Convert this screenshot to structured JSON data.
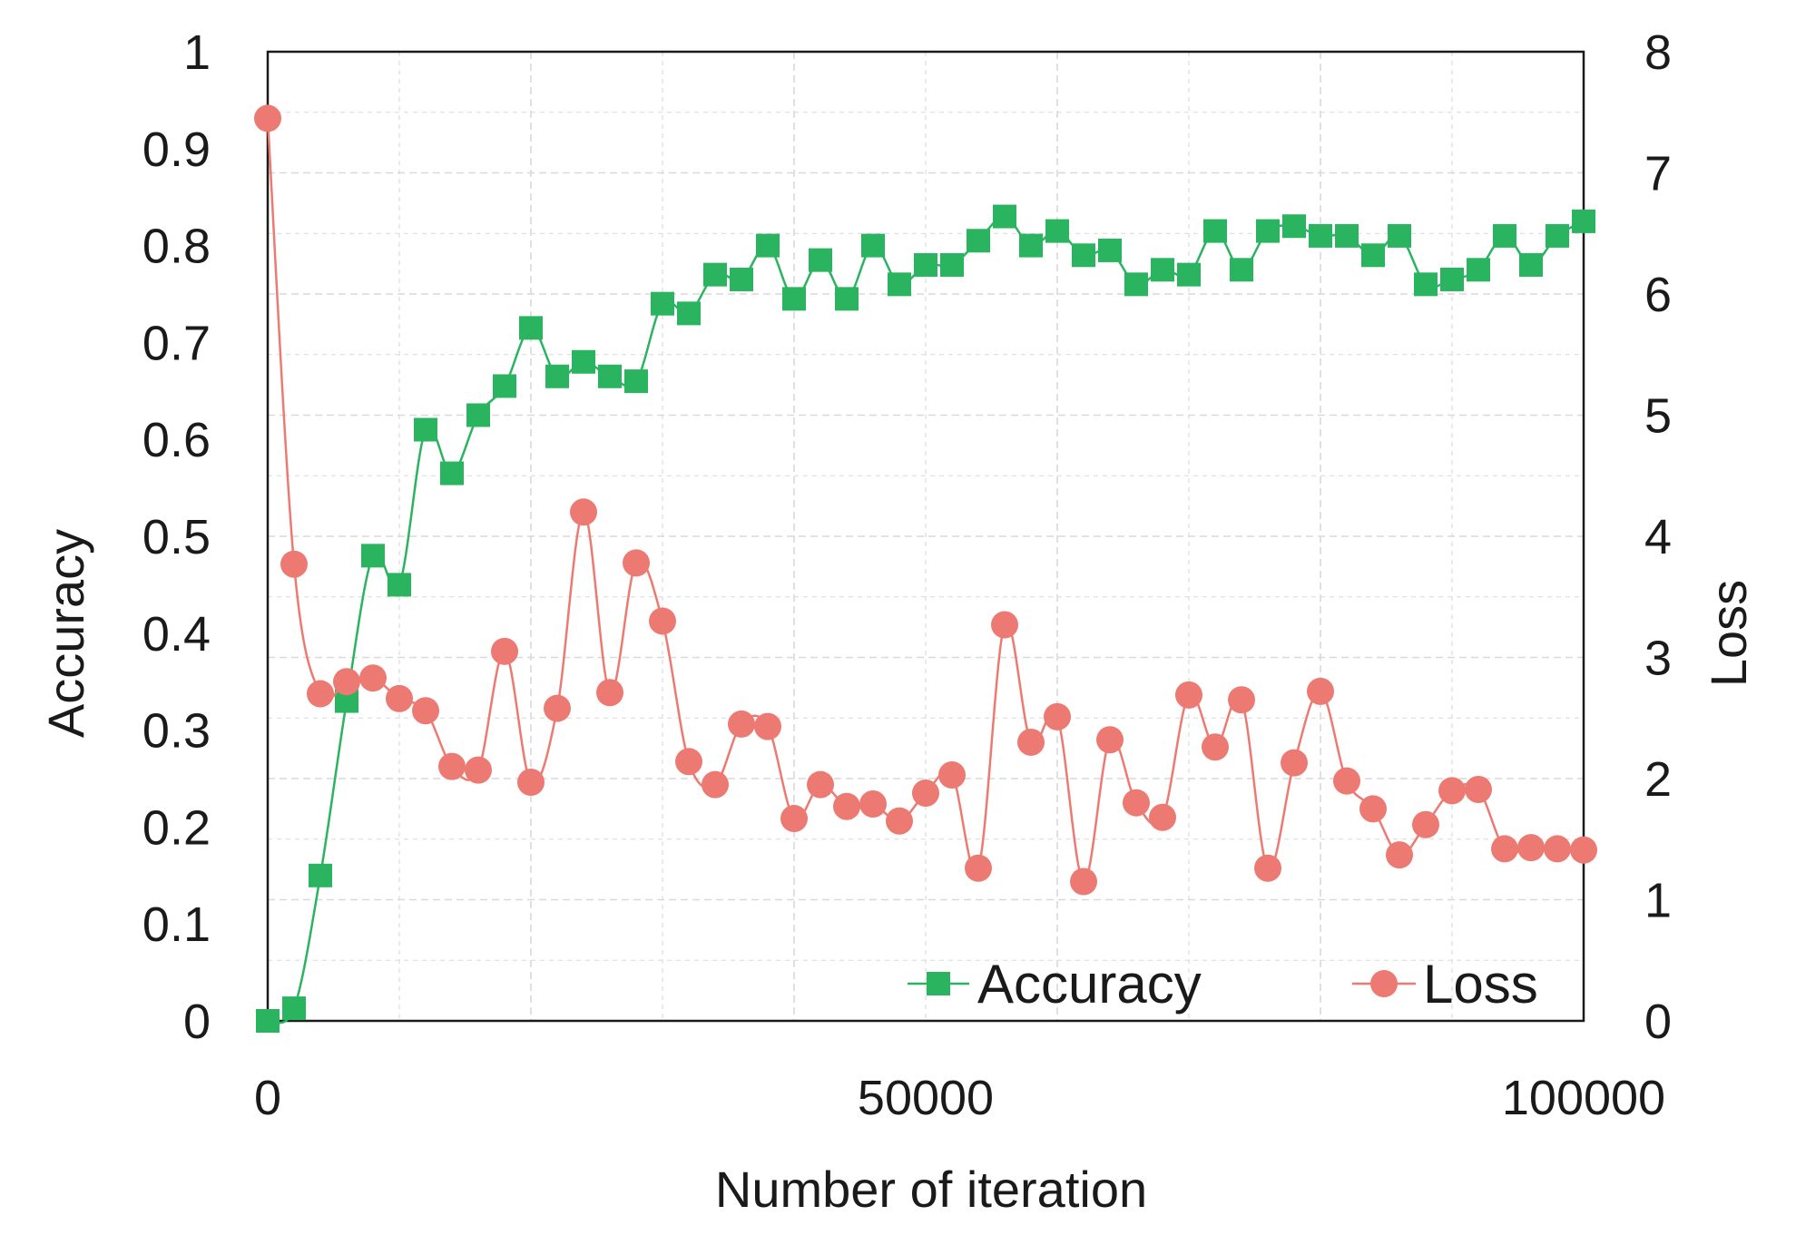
{
  "chart_data": {
    "type": "line",
    "title": "",
    "xlabel": "Number of iteration",
    "ylabel_left": "Accuracy",
    "ylabel_right": "Loss",
    "xlim": [
      0,
      100000
    ],
    "ylim_left": [
      0,
      1
    ],
    "ylim_right": [
      0,
      8
    ],
    "x_ticks": [
      0,
      50000,
      100000
    ],
    "x_tick_labels": [
      "0",
      "50000",
      "100000"
    ],
    "y_left_ticks": [
      0,
      0.1,
      0.2,
      0.3,
      0.4,
      0.5,
      0.6,
      0.7,
      0.8,
      0.9,
      1
    ],
    "y_left_tick_labels": [
      "0",
      "0.1",
      "0.2",
      "0.3",
      "0.4",
      "0.5",
      "0.6",
      "0.7",
      "0.8",
      "0.9",
      "1"
    ],
    "y_right_ticks": [
      0,
      1,
      2,
      3,
      4,
      5,
      6,
      7,
      8
    ],
    "y_right_tick_labels": [
      "0",
      "1",
      "2",
      "3",
      "4",
      "5",
      "6",
      "7",
      "8"
    ],
    "grid": true,
    "legend_position": "bottom-right",
    "x": [
      0,
      2000,
      4000,
      6000,
      8000,
      10000,
      12000,
      14000,
      16000,
      18000,
      20000,
      22000,
      24000,
      26000,
      28000,
      30000,
      32000,
      34000,
      36000,
      38000,
      40000,
      42000,
      44000,
      46000,
      48000,
      50000,
      52000,
      54000,
      56000,
      58000,
      60000,
      62000,
      64000,
      66000,
      68000,
      70000,
      72000,
      74000,
      76000,
      78000,
      80000,
      82000,
      84000,
      86000,
      88000,
      90000,
      92000,
      94000,
      96000,
      98000,
      100000
    ],
    "series": [
      {
        "name": "Accuracy",
        "axis": "left",
        "marker": "square",
        "color": "#2bb45f",
        "values": [
          0.0,
          0.013,
          0.15,
          0.33,
          0.48,
          0.45,
          0.61,
          0.565,
          0.625,
          0.655,
          0.715,
          0.665,
          0.68,
          0.665,
          0.66,
          0.74,
          0.73,
          0.77,
          0.765,
          0.8,
          0.745,
          0.785,
          0.745,
          0.8,
          0.76,
          0.78,
          0.78,
          0.805,
          0.83,
          0.8,
          0.815,
          0.79,
          0.795,
          0.76,
          0.775,
          0.77,
          0.815,
          0.775,
          0.815,
          0.82,
          0.81,
          0.81,
          0.79,
          0.81,
          0.76,
          0.765,
          0.775,
          0.81,
          0.78,
          0.81,
          0.825
        ]
      },
      {
        "name": "Loss",
        "axis": "right",
        "marker": "circle",
        "color": "#ec7a72",
        "values": [
          7.45,
          3.77,
          2.7,
          2.8,
          2.83,
          2.66,
          2.56,
          2.1,
          2.07,
          3.05,
          1.97,
          2.58,
          4.2,
          2.71,
          3.78,
          3.3,
          2.14,
          1.95,
          2.45,
          2.43,
          1.67,
          1.95,
          1.77,
          1.79,
          1.65,
          1.88,
          2.03,
          1.26,
          3.27,
          2.3,
          2.51,
          1.15,
          2.32,
          1.8,
          1.68,
          2.69,
          2.26,
          2.65,
          1.26,
          2.13,
          2.72,
          1.98,
          1.75,
          1.37,
          1.62,
          1.9,
          1.91,
          1.42,
          1.43,
          1.42,
          1.41
        ]
      }
    ]
  },
  "colors": {
    "accuracy": "#2bb45f",
    "loss": "#ec7a72",
    "grid": "#d9d9d9",
    "frame": "#1a1a1a"
  }
}
